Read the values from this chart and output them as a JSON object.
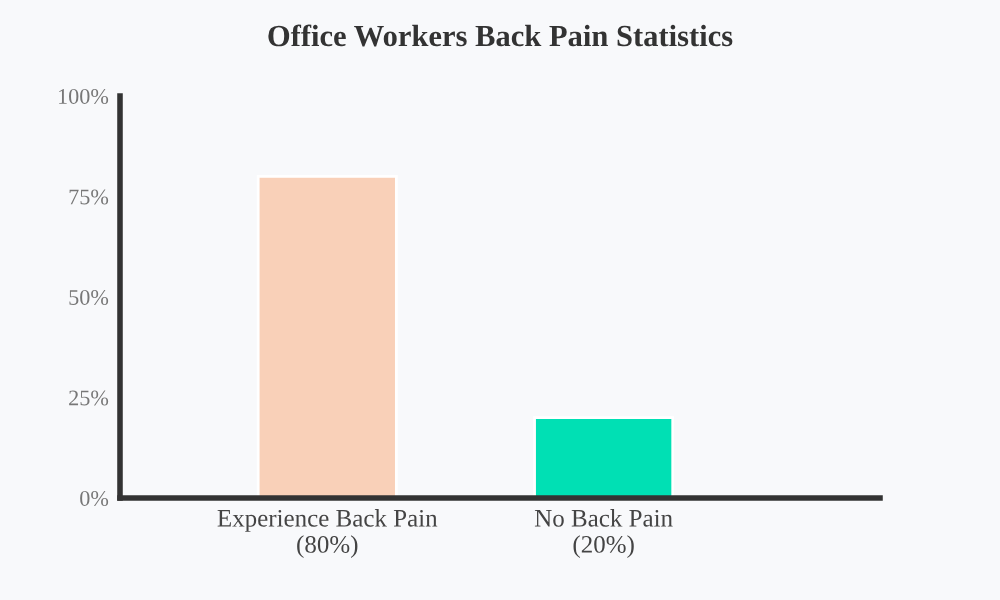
{
  "chart_data": {
    "type": "bar",
    "title": "Office Workers Back Pain Statistics",
    "categories": [
      "Experience Back Pain\n(80%)",
      "No Back Pain\n(20%)"
    ],
    "values": [
      80,
      20
    ],
    "colors": [
      "#f9d0b8",
      "#00e0b4"
    ],
    "ylim": [
      0,
      100
    ],
    "yticks": [
      {
        "value": 0,
        "label": "0%"
      },
      {
        "value": 25,
        "label": "25%"
      },
      {
        "value": 50,
        "label": "50%"
      },
      {
        "value": 75,
        "label": "75%"
      },
      {
        "value": 100,
        "label": "100%"
      }
    ],
    "grid": false
  }
}
